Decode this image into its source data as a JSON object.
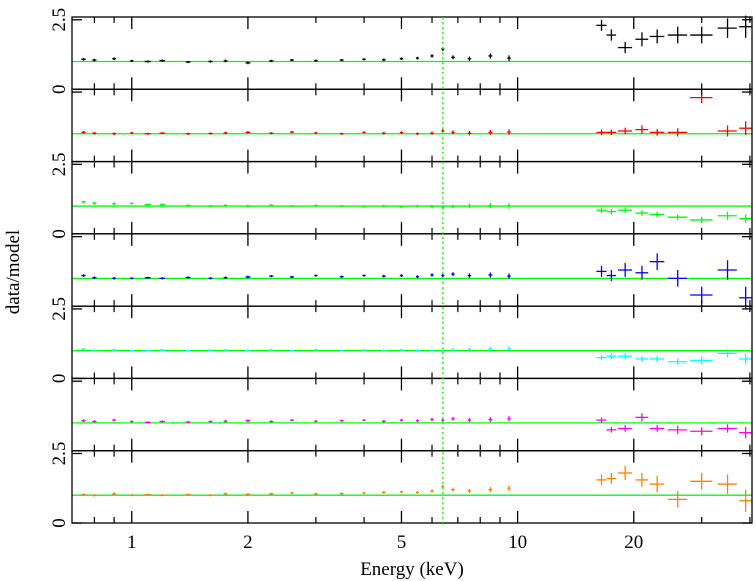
{
  "chart_data": {
    "type": "scatter",
    "xlabel": "Energy (keV)",
    "ylabel": "data/model",
    "log_x": true,
    "xlim": [
      0.7,
      40.5
    ],
    "xticks": [
      1,
      2,
      5,
      10,
      20
    ],
    "xticks_minor": [
      0.8,
      0.9,
      3,
      4,
      6,
      7,
      8,
      9,
      30,
      40
    ],
    "vline": {
      "x": 6.4,
      "color": "#00ff00"
    },
    "reference_line": 1,
    "reference_color": "#00ff00",
    "x": [
      0.75,
      0.8,
      0.9,
      1.0,
      1.1,
      1.2,
      1.4,
      1.6,
      1.75,
      2.0,
      2.3,
      2.6,
      3.0,
      3.5,
      4.0,
      4.5,
      5.0,
      5.5,
      6.0,
      6.4,
      6.8,
      7.5,
      8.5,
      9.5,
      16.5,
      17.5,
      19,
      21,
      23,
      26,
      30,
      35,
      39
    ],
    "xerr": [
      0.01,
      0.01,
      0.01,
      0.01,
      0.02,
      0.02,
      0.02,
      0.02,
      0.02,
      0.03,
      0.03,
      0.03,
      0.03,
      0.04,
      0.04,
      0.05,
      0.05,
      0.05,
      0.06,
      0.06,
      0.07,
      0.08,
      0.1,
      0.1,
      0.5,
      0.5,
      0.8,
      0.8,
      1,
      1.5,
      2,
      2,
      1.5
    ],
    "panels": [
      {
        "color": "#000000",
        "ylim": [
          0,
          2.6
        ],
        "yticks": [
          0,
          2.5
        ],
        "show_ytick_labels": true,
        "values": [
          1.08,
          1.05,
          1.1,
          1.02,
          1.0,
          1.03,
          0.98,
          1.0,
          1.02,
          0.95,
          1.02,
          1.05,
          1.03,
          1.05,
          1.08,
          1.06,
          1.1,
          1.12,
          1.2,
          1.45,
          1.15,
          1.1,
          1.2,
          1.12,
          2.3,
          1.95,
          1.5,
          1.8,
          1.9,
          1.95,
          1.95,
          2.2,
          2.25
        ],
        "yerr": [
          0.05,
          0.05,
          0.05,
          0.04,
          0.04,
          0.04,
          0.04,
          0.04,
          0.05,
          0.05,
          0.04,
          0.04,
          0.04,
          0.04,
          0.04,
          0.05,
          0.05,
          0.05,
          0.06,
          0.07,
          0.07,
          0.08,
          0.09,
          0.1,
          0.2,
          0.2,
          0.2,
          0.25,
          0.25,
          0.3,
          0.3,
          0.35,
          0.4
        ]
      },
      {
        "color": "#ff0000",
        "ylim": [
          0,
          2.6
        ],
        "yticks": [
          0,
          2.5
        ],
        "show_ytick_labels": false,
        "values": [
          1.05,
          1.02,
          1.0,
          1.03,
          1.0,
          1.02,
          1.0,
          1.01,
          1.03,
          1.05,
          1.02,
          1.06,
          1.03,
          1.0,
          1.05,
          1.02,
          1.04,
          1.0,
          1.02,
          1.1,
          1.05,
          1.02,
          1.05,
          1.06,
          1.05,
          1.05,
          1.1,
          1.15,
          1.05,
          1.05,
          2.3,
          1.1,
          1.2
        ],
        "yerr": [
          0.05,
          0.05,
          0.05,
          0.04,
          0.04,
          0.04,
          0.04,
          0.04,
          0.05,
          0.05,
          0.04,
          0.04,
          0.04,
          0.04,
          0.04,
          0.05,
          0.05,
          0.05,
          0.06,
          0.07,
          0.07,
          0.08,
          0.09,
          0.1,
          0.1,
          0.1,
          0.12,
          0.15,
          0.12,
          0.15,
          0.2,
          0.2,
          0.25
        ]
      },
      {
        "color": "#00ff00",
        "ylim": [
          0,
          2.6
        ],
        "yticks": [
          0,
          2.5
        ],
        "show_ytick_labels": true,
        "values": [
          1.15,
          1.1,
          1.08,
          1.1,
          1.05,
          1.05,
          1.02,
          1.0,
          1.02,
          1.0,
          1.03,
          1.0,
          1.02,
          1.0,
          0.98,
          1.0,
          0.97,
          1.0,
          0.98,
          0.95,
          0.98,
          1.0,
          1.02,
          1.0,
          0.85,
          0.8,
          0.85,
          0.75,
          0.7,
          0.6,
          0.5,
          0.65,
          0.55
        ],
        "yerr": [
          0.05,
          0.05,
          0.05,
          0.04,
          0.04,
          0.04,
          0.04,
          0.04,
          0.05,
          0.05,
          0.04,
          0.04,
          0.04,
          0.04,
          0.04,
          0.05,
          0.05,
          0.05,
          0.06,
          0.07,
          0.07,
          0.08,
          0.09,
          0.1,
          0.1,
          0.1,
          0.1,
          0.1,
          0.1,
          0.1,
          0.12,
          0.15,
          0.15
        ]
      },
      {
        "color": "#0000ff",
        "ylim": [
          0,
          2.6
        ],
        "yticks": [
          0,
          2.5
        ],
        "show_ytick_labels": false,
        "values": [
          1.1,
          1.02,
          1.0,
          1.0,
          1.02,
          1.0,
          1.03,
          1.0,
          1.02,
          1.05,
          1.08,
          1.05,
          1.1,
          1.06,
          1.1,
          1.08,
          1.1,
          1.06,
          1.12,
          1.1,
          1.15,
          1.1,
          1.12,
          1.08,
          1.25,
          1.1,
          1.3,
          1.2,
          1.6,
          1.0,
          0.4,
          1.3,
          0.3
        ],
        "yerr": [
          0.05,
          0.05,
          0.05,
          0.04,
          0.04,
          0.04,
          0.04,
          0.04,
          0.05,
          0.05,
          0.04,
          0.04,
          0.04,
          0.04,
          0.04,
          0.05,
          0.05,
          0.05,
          0.06,
          0.07,
          0.07,
          0.08,
          0.09,
          0.1,
          0.2,
          0.2,
          0.25,
          0.25,
          0.3,
          0.3,
          0.3,
          0.35,
          0.4
        ]
      },
      {
        "color": "#00ffff",
        "ylim": [
          0,
          2.6
        ],
        "yticks": [
          0,
          2.5
        ],
        "show_ytick_labels": true,
        "values": [
          1.05,
          1.0,
          1.02,
          1.0,
          1.0,
          1.02,
          1.0,
          1.01,
          1.02,
          1.0,
          1.02,
          1.0,
          1.03,
          1.0,
          1.02,
          1.0,
          1.02,
          1.0,
          1.0,
          0.98,
          1.02,
          1.03,
          1.05,
          1.05,
          0.75,
          0.8,
          0.8,
          0.7,
          0.7,
          0.6,
          0.65,
          0.9,
          0.7
        ],
        "yerr": [
          0.05,
          0.05,
          0.05,
          0.04,
          0.04,
          0.04,
          0.04,
          0.04,
          0.05,
          0.05,
          0.04,
          0.04,
          0.04,
          0.04,
          0.04,
          0.05,
          0.05,
          0.05,
          0.06,
          0.07,
          0.07,
          0.08,
          0.09,
          0.1,
          0.1,
          0.1,
          0.1,
          0.1,
          0.12,
          0.12,
          0.15,
          0.15,
          0.2
        ]
      },
      {
        "color": "#ff00ff",
        "ylim": [
          0,
          2.6
        ],
        "yticks": [
          0,
          2.5
        ],
        "show_ytick_labels": false,
        "values": [
          1.08,
          1.05,
          1.1,
          1.05,
          1.02,
          1.05,
          1.03,
          1.05,
          1.06,
          1.08,
          1.05,
          1.1,
          1.06,
          1.08,
          1.1,
          1.06,
          1.1,
          1.08,
          1.12,
          1.1,
          1.15,
          1.1,
          1.12,
          1.15,
          1.1,
          0.75,
          0.8,
          1.2,
          0.8,
          0.75,
          0.7,
          0.8,
          0.65
        ],
        "yerr": [
          0.05,
          0.05,
          0.05,
          0.04,
          0.04,
          0.04,
          0.04,
          0.04,
          0.05,
          0.05,
          0.04,
          0.04,
          0.04,
          0.04,
          0.04,
          0.05,
          0.05,
          0.05,
          0.06,
          0.07,
          0.07,
          0.08,
          0.09,
          0.1,
          0.1,
          0.1,
          0.12,
          0.15,
          0.12,
          0.15,
          0.15,
          0.15,
          0.2
        ]
      },
      {
        "color": "#ff8000",
        "ylim": [
          0,
          2.6
        ],
        "yticks": [
          0,
          2.5
        ],
        "show_ytick_labels": true,
        "values": [
          1.02,
          1.0,
          1.05,
          1.0,
          1.02,
          1.0,
          1.02,
          1.0,
          1.05,
          1.03,
          1.05,
          1.08,
          1.05,
          1.06,
          1.08,
          1.1,
          1.12,
          1.1,
          1.15,
          1.3,
          1.2,
          1.15,
          1.2,
          1.25,
          1.55,
          1.6,
          1.8,
          1.55,
          1.4,
          0.85,
          1.5,
          1.4,
          0.8
        ],
        "yerr": [
          0.05,
          0.05,
          0.05,
          0.04,
          0.04,
          0.04,
          0.04,
          0.04,
          0.05,
          0.05,
          0.04,
          0.04,
          0.04,
          0.04,
          0.04,
          0.05,
          0.05,
          0.05,
          0.06,
          0.07,
          0.07,
          0.08,
          0.09,
          0.1,
          0.2,
          0.2,
          0.25,
          0.25,
          0.3,
          0.3,
          0.3,
          0.35,
          0.4
        ]
      }
    ]
  }
}
